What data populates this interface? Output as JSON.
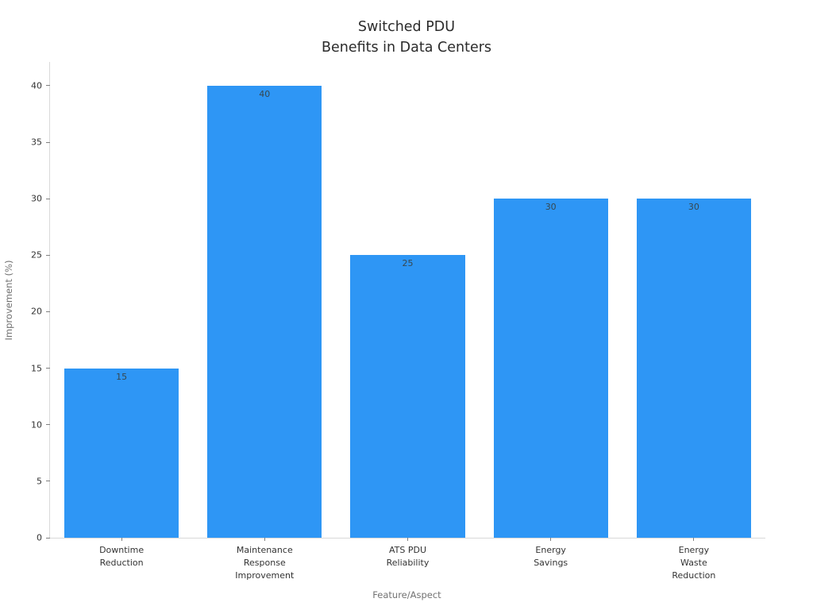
{
  "chart_data": {
    "type": "bar",
    "title": "Switched PDU\nBenefits in Data Centers",
    "xlabel": "Feature/Aspect",
    "ylabel": "Improvement (%)",
    "categories": [
      "Downtime\nReduction",
      "Maintenance\nResponse\nImprovement",
      "ATS PDU\nReliability",
      "Energy\nSavings",
      "Energy\nWaste\nReduction"
    ],
    "values": [
      15,
      40,
      25,
      30,
      30
    ],
    "bar_value_labels": [
      "15",
      "40",
      "25",
      "30",
      "30"
    ],
    "yticks": [
      0,
      5,
      10,
      15,
      20,
      25,
      30,
      35,
      40
    ],
    "ylim": [
      0,
      42.1
    ],
    "grid": false,
    "legend": null,
    "bar_width_fraction": 0.8,
    "colors": {
      "bar_fill": "#2E96F5",
      "bar_value_label": "#37474F",
      "tick_label": "#333333",
      "axis_title": "#737373",
      "spine": "#d9d9d9",
      "tick_mark": "#808080",
      "title": "#2b2b2b"
    }
  }
}
